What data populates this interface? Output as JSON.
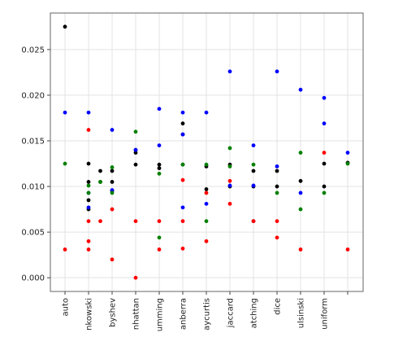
{
  "chart_data": {
    "type": "scatter",
    "title": "",
    "xlabel": "",
    "ylabel": "",
    "grid": true,
    "categories": [
      "auto",
      "minkowski",
      "chebyshev",
      "manhattan",
      "hamming",
      "canberra",
      "braycurtis",
      "jaccard",
      "matching",
      "dice",
      "kulsinski",
      "uniform",
      ""
    ],
    "category_tick_labels": [
      "auto",
      "nkowski",
      "byshev",
      "nhattan",
      "umming",
      "anberra",
      "aycurtis",
      "jaccard",
      "atching",
      "dice",
      "ulsinski",
      "uniform",
      ""
    ],
    "ylim": [
      -0.0015,
      0.029
    ],
    "yticks": [
      0.0,
      0.005,
      0.01,
      0.015,
      0.02,
      0.025
    ],
    "ytick_labels": [
      "0.000",
      "0.005",
      "0.010",
      "0.015",
      "0.020",
      "0.025"
    ],
    "series": [
      {
        "color": "#000000",
        "points": [
          [
            0,
            0.0275
          ],
          [
            1,
            0.0125
          ],
          [
            1,
            0.0105
          ],
          [
            1,
            0.0085
          ],
          [
            1,
            0.0075
          ],
          [
            1.5,
            0.0117
          ],
          [
            1.5,
            0.0105
          ],
          [
            2,
            0.0117
          ],
          [
            2,
            0.0105
          ],
          [
            2,
            0.0095
          ],
          [
            3,
            0.014
          ],
          [
            3,
            0.0137
          ],
          [
            3,
            0.0124
          ],
          [
            4,
            0.0124
          ],
          [
            4,
            0.012
          ],
          [
            5,
            0.0169
          ],
          [
            5,
            0.0157
          ],
          [
            5,
            0.0124
          ],
          [
            6,
            0.0122
          ],
          [
            6,
            0.0097
          ],
          [
            7,
            0.0124
          ],
          [
            7,
            0.01
          ],
          [
            8,
            0.0117
          ],
          [
            8,
            0.01
          ],
          [
            8,
            0.0062
          ],
          [
            9,
            0.0117
          ],
          [
            9,
            0.01
          ],
          [
            10,
            0.0106
          ],
          [
            11,
            0.0125
          ],
          [
            11,
            0.01
          ],
          [
            12,
            0.0126
          ]
        ]
      },
      {
        "color": "#0000ff",
        "points": [
          [
            0,
            0.0181
          ],
          [
            1,
            0.0181
          ],
          [
            1,
            0.0093
          ],
          [
            1,
            0.0077
          ],
          [
            2,
            0.0162
          ],
          [
            2,
            0.0096
          ],
          [
            3,
            0.014
          ],
          [
            4,
            0.0185
          ],
          [
            4,
            0.0145
          ],
          [
            5,
            0.0181
          ],
          [
            5,
            0.0157
          ],
          [
            5,
            0.0077
          ],
          [
            6,
            0.0181
          ],
          [
            6,
            0.0081
          ],
          [
            7,
            0.0226
          ],
          [
            7,
            0.0101
          ],
          [
            8,
            0.0145
          ],
          [
            8,
            0.0101
          ],
          [
            9,
            0.0226
          ],
          [
            9,
            0.0122
          ],
          [
            10,
            0.0206
          ],
          [
            10,
            0.0093
          ],
          [
            11,
            0.0197
          ],
          [
            11,
            0.0169
          ],
          [
            12,
            0.0137
          ]
        ]
      },
      {
        "color": "#ff0000",
        "points": [
          [
            0,
            0.0031
          ],
          [
            1,
            0.0162
          ],
          [
            1,
            0.0062
          ],
          [
            1,
            0.004
          ],
          [
            1,
            0.0031
          ],
          [
            1.5,
            0.0062
          ],
          [
            2,
            0.0075
          ],
          [
            2,
            0.002
          ],
          [
            3,
            0.0062
          ],
          [
            3,
            0.0
          ],
          [
            4,
            0.0062
          ],
          [
            4,
            0.0031
          ],
          [
            5,
            0.0107
          ],
          [
            5,
            0.0062
          ],
          [
            5,
            0.0032
          ],
          [
            6,
            0.0093
          ],
          [
            6,
            0.004
          ],
          [
            7,
            0.0106
          ],
          [
            7,
            0.0081
          ],
          [
            8,
            0.0062
          ],
          [
            9,
            0.0062
          ],
          [
            9,
            0.0044
          ],
          [
            10,
            0.0031
          ],
          [
            11,
            0.0137
          ],
          [
            12,
            0.0031
          ]
        ]
      },
      {
        "color": "#008000",
        "points": [
          [
            0,
            0.0125
          ],
          [
            1,
            0.0101
          ],
          [
            1,
            0.0093
          ],
          [
            1.5,
            0.0105
          ],
          [
            2,
            0.0121
          ],
          [
            2,
            0.0093
          ],
          [
            3,
            0.016
          ],
          [
            4,
            0.0114
          ],
          [
            4,
            0.0044
          ],
          [
            5,
            0.0124
          ],
          [
            6,
            0.0124
          ],
          [
            6,
            0.0062
          ],
          [
            7,
            0.0142
          ],
          [
            7,
            0.0122
          ],
          [
            8,
            0.0124
          ],
          [
            9,
            0.0093
          ],
          [
            10,
            0.0137
          ],
          [
            10,
            0.0075
          ],
          [
            11,
            0.0093
          ],
          [
            12,
            0.0125
          ]
        ]
      }
    ]
  }
}
